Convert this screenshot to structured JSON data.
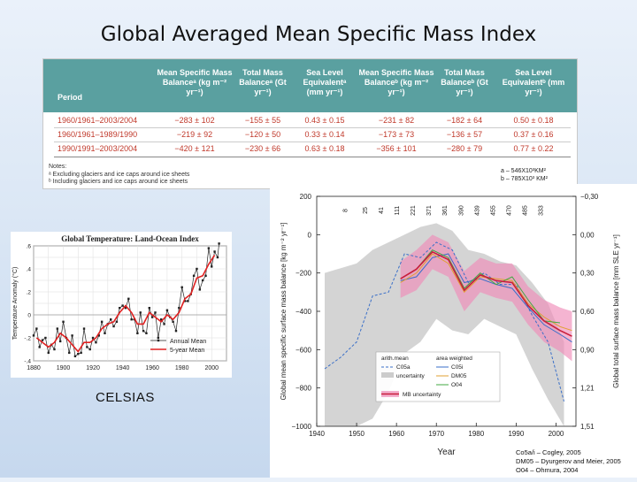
{
  "slide": {
    "title": "Global Averaged Mean Specific Mass Index",
    "celsius_label": "CELSIAS"
  },
  "table": {
    "headers": {
      "period": "Period",
      "msmb_a": "Mean Specific Mass Balanceᵃ (kg m⁻² yr⁻¹)",
      "tmb_a": "Total Mass Balanceᵃ (Gt yr⁻¹)",
      "sle_a": "Sea Level Equivalentᵃ (mm yr⁻¹)",
      "msmb_b": "Mean Specific Mass Balanceᵇ (kg m⁻² yr⁻¹)",
      "tmb_b": "Total Mass Balanceᵇ (Gt yr⁻¹)",
      "sle_b": "Sea Level Equivalentᵇ (mm yr⁻¹)"
    },
    "rows": [
      {
        "period": "1960/1961–2003/2004",
        "msmb_a": "−283 ± 102",
        "tmb_a": "−155 ± 55",
        "sle_a": "0.43 ± 0.15",
        "msmb_b": "−231 ± 82",
        "tmb_b": "−182 ± 64",
        "sle_b": "0.50 ± 0.18"
      },
      {
        "period": "1960/1961–1989/1990",
        "msmb_a": "−219 ± 92",
        "tmb_a": "−120 ± 50",
        "sle_a": "0.33 ± 0.14",
        "msmb_b": "−173 ± 73",
        "tmb_b": "−136 ± 57",
        "sle_b": "0.37 ± 0.16"
      },
      {
        "period": "1990/1991–2003/2004",
        "msmb_a": "−420 ± 121",
        "tmb_a": "−230 ± 66",
        "sle_a": "0.63 ± 0.18",
        "msmb_b": "−356 ± 101",
        "tmb_b": "−280 ± 79",
        "sle_b": "0.77 ± 0.22"
      }
    ],
    "notes": {
      "title": "Notes:",
      "a": "ᵃ Excluding glaciers and ice caps around ice sheets",
      "b": "ᵇ Including glaciers and ice caps around ice sheets"
    }
  },
  "area_notes": {
    "a": "a – 546X10³KM²",
    "b": "b – 785X10³ KM²"
  },
  "sources": {
    "line1": "Co5a/i – Cogley, 2005",
    "line2": "DM05 – Dyurgerov and Meier, 2005",
    "line3": "O04 – Ohmura, 2004"
  },
  "chart_data": [
    {
      "type": "line",
      "title": "Global Temperature: Land-Ocean Index",
      "ylabel": "Temperature Anomaly (°C)",
      "xlim": [
        1880,
        2010
      ],
      "ylim": [
        -0.4,
        0.6
      ],
      "xticks": [
        1880,
        1900,
        1920,
        1940,
        1960,
        1980,
        2000
      ],
      "yticks": [
        -0.4,
        -0.2,
        0,
        0.2,
        0.4,
        0.6
      ],
      "ytick_labels": [
        "-.4",
        "-.2",
        "0",
        ".2",
        ".4",
        ".6"
      ],
      "legend": [
        "Annual Mean",
        "5-year Mean"
      ],
      "grid": true,
      "series": [
        {
          "name": "Annual Mean",
          "color": "#222222",
          "x": [
            1880,
            1882,
            1884,
            1886,
            1888,
            1890,
            1892,
            1894,
            1896,
            1898,
            1900,
            1902,
            1904,
            1906,
            1908,
            1910,
            1912,
            1914,
            1916,
            1918,
            1920,
            1922,
            1924,
            1926,
            1928,
            1930,
            1932,
            1934,
            1936,
            1938,
            1940,
            1942,
            1944,
            1946,
            1948,
            1950,
            1952,
            1954,
            1956,
            1958,
            1960,
            1962,
            1964,
            1966,
            1968,
            1970,
            1972,
            1974,
            1976,
            1978,
            1980,
            1982,
            1984,
            1986,
            1988,
            1990,
            1992,
            1994,
            1996,
            1998,
            2000,
            2002,
            2004,
            2005
          ],
          "y": [
            -0.18,
            -0.12,
            -0.28,
            -0.22,
            -0.2,
            -0.33,
            -0.26,
            -0.3,
            -0.12,
            -0.23,
            -0.06,
            -0.2,
            -0.33,
            -0.18,
            -0.36,
            -0.34,
            -0.33,
            -0.12,
            -0.28,
            -0.3,
            -0.2,
            -0.24,
            -0.18,
            -0.06,
            -0.16,
            -0.08,
            -0.04,
            -0.1,
            -0.06,
            0.06,
            0.08,
            0.06,
            0.14,
            -0.04,
            -0.04,
            -0.16,
            0.02,
            -0.14,
            -0.16,
            0.06,
            -0.02,
            0.02,
            -0.2,
            -0.04,
            -0.08,
            0.04,
            -0.02,
            -0.06,
            -0.14,
            0.06,
            0.24,
            0.12,
            0.12,
            0.18,
            0.34,
            0.4,
            0.22,
            0.3,
            0.34,
            0.58,
            0.42,
            0.55,
            0.5,
            0.62
          ]
        },
        {
          "name": "5-year Mean",
          "color": "#e02020",
          "x": [
            1882,
            1886,
            1890,
            1894,
            1898,
            1902,
            1906,
            1910,
            1914,
            1918,
            1922,
            1926,
            1930,
            1934,
            1938,
            1942,
            1946,
            1950,
            1954,
            1958,
            1962,
            1966,
            1970,
            1974,
            1978,
            1982,
            1986,
            1990,
            1994,
            1998,
            2002
          ],
          "y": [
            -0.2,
            -0.24,
            -0.28,
            -0.24,
            -0.16,
            -0.2,
            -0.26,
            -0.32,
            -0.24,
            -0.24,
            -0.2,
            -0.12,
            -0.08,
            -0.06,
            0.02,
            0.08,
            0.02,
            -0.08,
            -0.08,
            0.02,
            -0.02,
            -0.06,
            0.0,
            -0.04,
            0.02,
            0.14,
            0.18,
            0.32,
            0.34,
            0.44,
            0.52
          ]
        }
      ]
    },
    {
      "type": "line",
      "xlabel": "Year",
      "ylabel": "Global mean specific surface mass balance [kg m⁻² yr⁻¹]",
      "ylabel_right": "Global total surface mass balance [mm SLE yr⁻¹]",
      "xlim": [
        1940,
        2005
      ],
      "ylim": [
        -1000,
        200
      ],
      "xticks": [
        1940,
        1950,
        1960,
        1970,
        1980,
        1990,
        2000
      ],
      "yticks": [
        200,
        0,
        -200,
        -400,
        -600,
        -800,
        -1000
      ],
      "yticks_right": [
        "-0,30",
        "0,00",
        "0,30",
        "0,60",
        "0,90",
        "1,21",
        "1,51"
      ],
      "counts_years": [
        1947,
        1952,
        1956,
        1960,
        1964,
        1968,
        1972,
        1976,
        1980,
        1984,
        1988,
        1992,
        1996
      ],
      "counts": [
        "8",
        "25",
        "41",
        "111",
        "221",
        "371",
        "361",
        "390",
        "439",
        "455",
        "470",
        "485",
        "333"
      ],
      "legend": {
        "col1_header": "arith.mean",
        "col2_header": "area weighted",
        "entries": [
          "C05a",
          "C05i",
          "uncertainty",
          "DM05",
          "O04",
          "MB uncertainty"
        ]
      },
      "grid": false,
      "series": [
        {
          "name": "C05a",
          "color": "#3a6fc8",
          "dashed": true,
          "x": [
            1942,
            1946,
            1950,
            1954,
            1958,
            1962,
            1966,
            1970,
            1974,
            1978,
            1982,
            1986,
            1990,
            1994,
            1998,
            2002
          ],
          "y": [
            -700,
            -640,
            -560,
            -320,
            -300,
            -100,
            -120,
            -40,
            -80,
            -250,
            -200,
            -260,
            -260,
            -420,
            -560,
            -870
          ]
        },
        {
          "name": "C05i",
          "color": "#3a6fc8",
          "x": [
            1961,
            1965,
            1969,
            1973,
            1977,
            1981,
            1985,
            1989,
            1993,
            1997,
            2001,
            2004
          ],
          "y": [
            -240,
            -220,
            -120,
            -100,
            -250,
            -230,
            -260,
            -280,
            -380,
            -470,
            -520,
            -560
          ]
        },
        {
          "name": "DM05",
          "color": "#e0a030",
          "x": [
            1961,
            1965,
            1969,
            1973,
            1977,
            1981,
            1985,
            1989,
            1993,
            1997,
            2001,
            2004
          ],
          "y": [
            -250,
            -200,
            -100,
            -150,
            -300,
            -220,
            -230,
            -240,
            -360,
            -430,
            -480,
            -500
          ]
        },
        {
          "name": "O04",
          "color": "#40a840",
          "x": [
            1961,
            1965,
            1969,
            1973,
            1977,
            1981,
            1985,
            1989,
            1993,
            1997,
            2001
          ],
          "y": [
            -230,
            -180,
            -80,
            -120,
            -280,
            -200,
            -260,
            -220,
            -340,
            -450,
            -460
          ]
        },
        {
          "name": "MB mean",
          "color": "#c81e3c",
          "x": [
            1961,
            1965,
            1969,
            1973,
            1977,
            1981,
            1985,
            1989,
            1993,
            1997,
            2001,
            2004
          ],
          "y": [
            -230,
            -180,
            -90,
            -130,
            -290,
            -210,
            -240,
            -250,
            -370,
            -450,
            -500,
            -530
          ]
        }
      ],
      "bands": [
        {
          "name": "uncertainty",
          "color": "#cccccc",
          "x": [
            1942,
            1950,
            1954,
            1958,
            1962,
            1966,
            1970,
            1974,
            1978,
            1982,
            1986,
            1990,
            1994,
            1998,
            2002
          ],
          "upper": [
            -200,
            -150,
            -80,
            -40,
            0,
            40,
            60,
            20,
            -80,
            -100,
            -140,
            -160,
            -250,
            -360,
            -560
          ],
          "lower": [
            -1000,
            -1000,
            -960,
            -820,
            -620,
            -560,
            -440,
            -500,
            -520,
            -440,
            -480,
            -520,
            -700,
            -860,
            -1000
          ]
        },
        {
          "name": "MB uncertainty",
          "color": "#f08cb8",
          "x": [
            1961,
            1965,
            1969,
            1973,
            1977,
            1981,
            1985,
            1989,
            1993,
            1997,
            2001,
            2004
          ],
          "upper": [
            -140,
            -80,
            0,
            -40,
            -190,
            -120,
            -150,
            -150,
            -270,
            -340,
            -380,
            -400
          ],
          "lower": [
            -330,
            -290,
            -180,
            -220,
            -400,
            -300,
            -330,
            -350,
            -470,
            -560,
            -610,
            -660
          ]
        }
      ]
    }
  ]
}
